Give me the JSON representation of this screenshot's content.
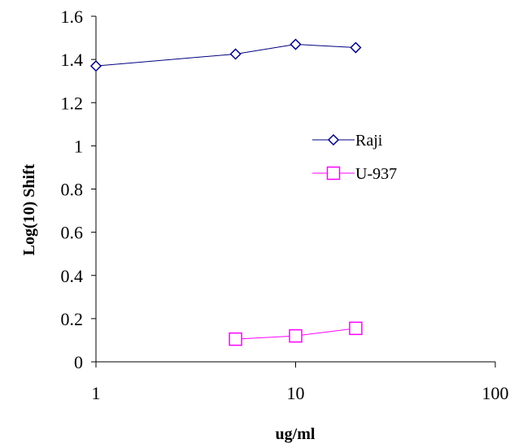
{
  "chart_data": {
    "type": "scatter",
    "title": "",
    "xlabel": "ug/ml",
    "ylabel": "Log(10) Shift",
    "x_scale": "log",
    "xlim": [
      1,
      100
    ],
    "ylim": [
      0,
      1.6
    ],
    "x_ticks": [
      "1",
      "10",
      "100"
    ],
    "y_ticks": [
      "0",
      "0.2",
      "0.4",
      "0.6",
      "0.8",
      "1",
      "1.2",
      "1.4",
      "1.6"
    ],
    "grid": false,
    "legend_position": "right",
    "series": [
      {
        "name": "Raji",
        "marker": "diamond",
        "color": "#000080",
        "x": [
          1,
          5,
          10,
          20
        ],
        "y": [
          1.37,
          1.425,
          1.47,
          1.455
        ]
      },
      {
        "name": "U-937",
        "marker": "square",
        "color": "#ff00ff",
        "x": [
          5,
          10,
          20
        ],
        "y": [
          0.105,
          0.12,
          0.155
        ]
      }
    ]
  }
}
